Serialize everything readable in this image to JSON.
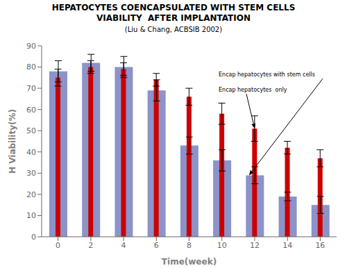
{
  "chart_data": {
    "type": "bar",
    "title": "HEPATOCYTES COENCAPSULATED WITH STEM CELLS\nVIABILITY  AFTER IMPLANTATION",
    "subtitle": "(Liu & Chang, ACBSIB 2002)",
    "xlabel": "Time(week)",
    "ylabel": "H Viability(%)",
    "categories": [
      "0",
      "2",
      "4",
      "6",
      "8",
      "10",
      "12",
      "14",
      "16"
    ],
    "series": [
      {
        "color": "#8B93C9",
        "values": [
          78,
          82,
          80,
          69,
          43,
          36,
          29,
          19,
          15
        ],
        "errors": [
          5,
          4,
          5,
          5,
          4,
          5,
          4,
          2,
          4
        ]
      },
      {
        "color": "#CC0000",
        "values": [
          75,
          80,
          79,
          74,
          66,
          58,
          51,
          42,
          37
        ],
        "errors": [
          4,
          3,
          3,
          3,
          4,
          5,
          6,
          3,
          4
        ]
      }
    ],
    "ylim": [
      0,
      90
    ],
    "yticks": [
      0,
      10,
      20,
      30,
      40,
      50,
      60,
      70,
      80,
      90
    ],
    "grid": false,
    "annotations": [
      {
        "text": "Encap hepatocytes with stem cells",
        "x": "12",
        "y": 29
      },
      {
        "text": "Encap hepatocytes  only",
        "x": "12",
        "y": 51
      }
    ]
  }
}
